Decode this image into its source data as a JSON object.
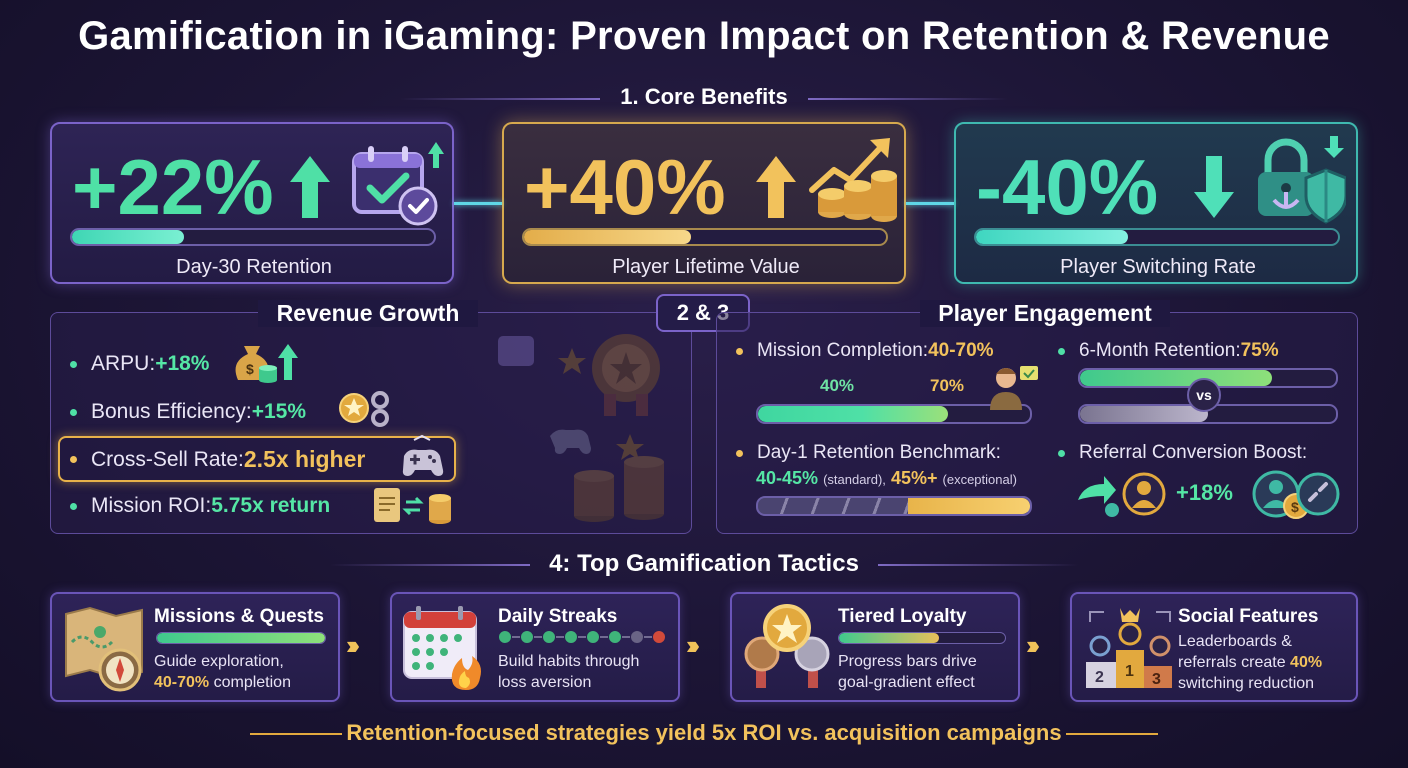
{
  "title": "Gamification in iGaming: Proven Impact on Retention & Revenue",
  "section1": {
    "heading": "1. Core Benefits",
    "cards": [
      {
        "value": "+22%",
        "label": "Day-30 Retention",
        "progress": 0.31,
        "icon": "calendar-check-icon",
        "arrow": "up-arrow-icon"
      },
      {
        "value": "+40%",
        "label": "Player Lifetime Value",
        "progress": 0.46,
        "icon": "coins-growth-icon",
        "arrow": "up-arrow-icon"
      },
      {
        "value": "-40%",
        "label": "Player Switching Rate",
        "progress": 0.42,
        "icon": "lock-anchor-shield-icon",
        "arrow": "down-arrow-icon"
      }
    ]
  },
  "middle": {
    "badge": "2 & 3",
    "revenue": {
      "heading": "Revenue Growth",
      "items": [
        {
          "label": "ARPU: ",
          "value": "+18%",
          "icon": "money-bag-icon"
        },
        {
          "label": "Bonus Efficiency: ",
          "value": "+15%",
          "icon": "gear-badge-icon"
        },
        {
          "label": "Cross-Sell Rate: ",
          "value": "2.5x higher",
          "icon": "gamepad-icon"
        },
        {
          "label": "Mission ROI: ",
          "value": "5.75x return",
          "icon": "scroll-coins-icon"
        }
      ]
    },
    "engagement": {
      "heading": "Player Engagement",
      "mission": {
        "label": "Mission Completion: ",
        "value": "40-70%",
        "tick1": "40%",
        "tick2": "70%",
        "from": 0.4,
        "to": 0.7
      },
      "six_month": {
        "label": "6-Month Retention: ",
        "value": "75%",
        "vs": "vs",
        "bar1": 0.75,
        "bar2": 0.5
      },
      "day1": {
        "label": "Day-1 Retention Benchmark:",
        "standard_value": "40-45%",
        "standard_note": "(standard),",
        "exceptional_value": "45%+",
        "exceptional_note": "(exceptional)",
        "standard_fraction": 0.55
      },
      "referral": {
        "label": "Referral Conversion Boost:",
        "value": "+18%"
      }
    }
  },
  "section4": {
    "heading": "4: Top Gamification Tactics",
    "tactics": [
      {
        "title": "Missions & Quests",
        "desc1": "Guide exploration,",
        "desc2_hl": "40-70%",
        "desc2": " completion",
        "icon": "map-compass-icon",
        "progress": 1.0
      },
      {
        "title": "Daily Streaks",
        "desc1": "Build habits through",
        "desc2": "loss aversion",
        "icon": "calendar-fire-icon"
      },
      {
        "title": "Tiered Loyalty",
        "desc1": "Progress bars drive",
        "desc2": "goal-gradient effect",
        "icon": "medals-icon",
        "progress": 0.6
      },
      {
        "title": "Social Features",
        "desc1": "Leaderboards &",
        "desc2a": "referrals create ",
        "desc2_hl": "40%",
        "desc3": "switching reduction",
        "icon": "leaderboard-podium-icon"
      }
    ]
  },
  "footer": "Retention-focused strategies yield 5x ROI vs. acquisition campaigns"
}
